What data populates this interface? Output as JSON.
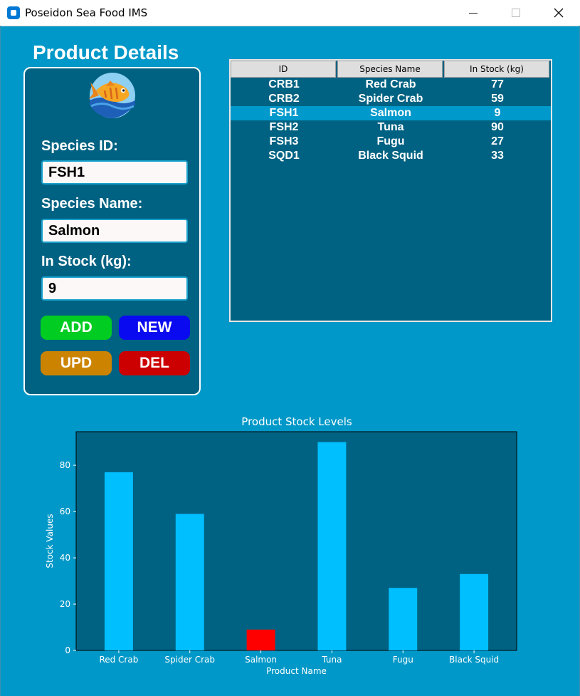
{
  "window": {
    "title": "Poseidon Sea Food IMS"
  },
  "details": {
    "heading": "Product Details",
    "species_id_label": "Species ID:",
    "species_id_value": "FSH1",
    "species_name_label": "Species Name:",
    "species_name_value": "Salmon",
    "in_stock_label": "In Stock (kg):",
    "in_stock_value": "9",
    "buttons": {
      "add": "ADD",
      "new": "NEW",
      "upd": "UPD",
      "del": "DEL"
    }
  },
  "table": {
    "headers": [
      "ID",
      "Species Name",
      "In Stock (kg)"
    ],
    "rows": [
      {
        "id": "CRB1",
        "name": "Red Crab",
        "stock": "77"
      },
      {
        "id": "CRB2",
        "name": "Spider Crab",
        "stock": "59"
      },
      {
        "id": "FSH1",
        "name": "Salmon",
        "stock": "9"
      },
      {
        "id": "FSH2",
        "name": "Tuna",
        "stock": "90"
      },
      {
        "id": "FSH3",
        "name": "Fugu",
        "stock": "27"
      },
      {
        "id": "SQD1",
        "name": "Black Squid",
        "stock": "33"
      }
    ],
    "selected_index": 2
  },
  "colors": {
    "background": "#0098c8",
    "panel": "#006282",
    "bar": "#00bfff",
    "bar_selected": "#ff0000",
    "add_button": "#00cc22",
    "new_button": "#0a0af0",
    "upd_button": "#cc8400",
    "del_button": "#cc0000"
  },
  "chart_data": {
    "type": "bar",
    "title": "Product Stock Levels",
    "xlabel": "Product Name",
    "ylabel": "Stock Values",
    "categories": [
      "Red Crab",
      "Spider Crab",
      "Salmon",
      "Tuna",
      "Fugu",
      "Black Squid"
    ],
    "values": [
      77,
      59,
      9,
      90,
      27,
      33
    ],
    "highlighted_category": "Salmon",
    "yticks": [
      0,
      20,
      40,
      60,
      80
    ],
    "ylim": [
      0,
      94.5
    ],
    "grid": false,
    "legend": "none"
  }
}
